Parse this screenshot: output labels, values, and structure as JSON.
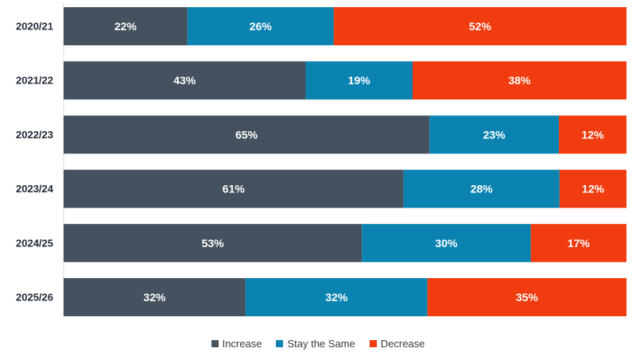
{
  "chart_data": {
    "type": "bar",
    "orientation": "horizontal",
    "stacked": true,
    "categories": [
      "2020/21",
      "2021/22",
      "2022/23",
      "2023/24",
      "2024/25",
      "2025/26"
    ],
    "series": [
      {
        "name": "Increase",
        "color": "#44525f",
        "values": [
          22,
          43,
          65,
          61,
          53,
          32
        ]
      },
      {
        "name": "Stay the Same",
        "color": "#0a83b0",
        "values": [
          26,
          19,
          23,
          28,
          30,
          32
        ]
      },
      {
        "name": "Decrease",
        "color": "#f03c0f",
        "values": [
          52,
          38,
          12,
          12,
          17,
          35
        ]
      }
    ],
    "value_suffix": "%",
    "legend_position": "bottom",
    "grid": false
  }
}
